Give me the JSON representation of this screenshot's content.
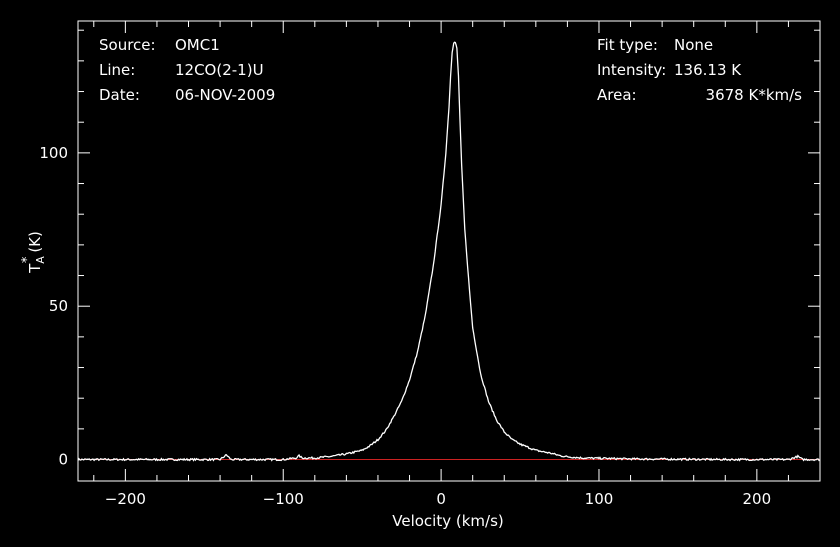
{
  "colors": {
    "background": "#000000",
    "foreground": "#ffffff",
    "baseline": "#cc2222"
  },
  "info": {
    "source_label": "Source:",
    "source_value": "OMC1",
    "line_label": "Line:",
    "line_value": "12CO(2-1)U",
    "date_label": "Date:",
    "date_value": "06-NOV-2009",
    "fit_label": "Fit type:",
    "fit_value": "None",
    "intensity_label": "Intensity:",
    "intensity_value": "136.13 K",
    "area_label": "Area:",
    "area_value": "3678 K*km/s"
  },
  "chart_data": {
    "type": "line",
    "xlabel": "Velocity (km/s)",
    "ylabel_main": "T",
    "ylabel_sup": "*",
    "ylabel_sub": "A",
    "ylabel_unit": "(K)",
    "xlim": [
      -230,
      240
    ],
    "ylim": [
      -7,
      143
    ],
    "x_ticks": [
      -200,
      -100,
      0,
      100,
      200
    ],
    "x_tick_labels": [
      "−200",
      "−100",
      "0",
      "100",
      "200"
    ],
    "y_ticks": [
      0,
      50,
      100
    ],
    "y_tick_labels": [
      "0",
      "50",
      "100"
    ],
    "grid": false,
    "baseline_y": 0,
    "series": [
      {
        "x": [
          -230,
          -200,
          -170,
          -140,
          -136,
          -133,
          -120,
          -100,
          -92,
          -90,
          -88,
          -80,
          -70,
          -60,
          -50,
          -45,
          -40,
          -35,
          -30,
          -25,
          -20,
          -15,
          -10,
          -5,
          0,
          3,
          5,
          6,
          7,
          8,
          9,
          10,
          11,
          12,
          13,
          15,
          18,
          20,
          25,
          30,
          35,
          40,
          45,
          50,
          55,
          60,
          65,
          70,
          75,
          80,
          90,
          100,
          120,
          150,
          180,
          200,
          220,
          226,
          229,
          235,
          240
        ],
        "y": [
          0,
          0,
          0,
          0,
          1.5,
          0,
          0,
          0,
          0.5,
          1.2,
          0.5,
          0.5,
          1,
          1.8,
          3,
          4.5,
          6.5,
          9.5,
          14,
          19,
          26,
          35,
          47,
          63,
          83,
          100,
          115,
          125,
          133,
          136,
          136,
          134,
          125,
          110,
          96,
          75,
          55,
          43,
          28,
          19,
          13,
          9,
          6.5,
          5,
          4,
          3,
          2.5,
          2,
          1.3,
          0.9,
          0.5,
          0.4,
          0.2,
          0.1,
          0,
          0,
          0,
          1,
          0,
          0,
          0
        ]
      }
    ]
  }
}
